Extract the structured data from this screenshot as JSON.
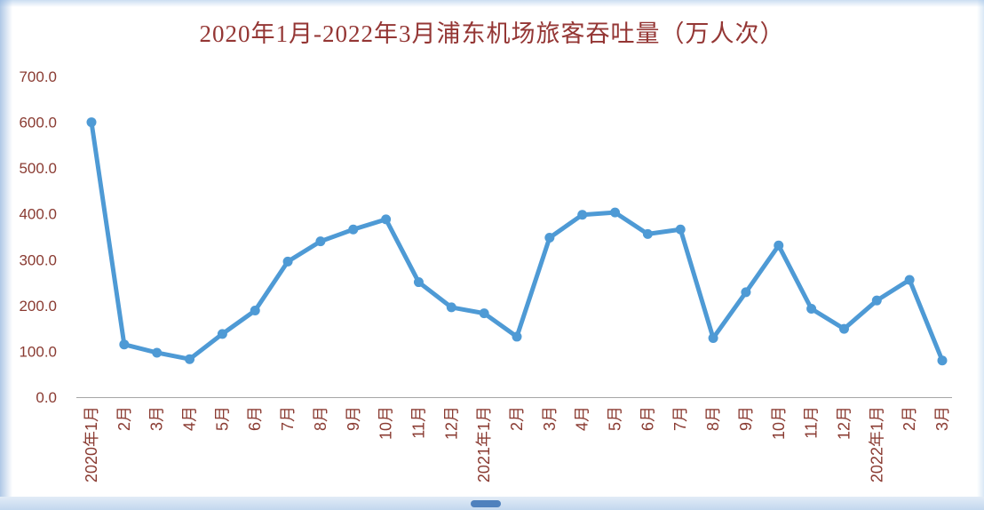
{
  "chart_data": {
    "type": "line",
    "title": "2020年1月-2022年3月浦东机场旅客吞吐量（万人次）",
    "xlabel": "",
    "ylabel": "",
    "grid": false,
    "legend": "none",
    "ylim": [
      0,
      700
    ],
    "ytick_step": 100,
    "ytick_decimals": 1,
    "categories": [
      "2020年1月",
      "2月",
      "3月",
      "4月",
      "5月",
      "6月",
      "7月",
      "8月",
      "9月",
      "10月",
      "11月",
      "12月",
      "2021年1月",
      "2月",
      "3月",
      "4月",
      "5月",
      "6月",
      "7月",
      "8月",
      "9月",
      "10月",
      "11月",
      "12月",
      "2022年1月",
      "2月",
      "3月"
    ],
    "values": [
      600,
      115,
      97,
      83,
      138,
      189,
      296,
      340,
      366,
      388,
      251,
      196,
      183,
      132,
      348,
      398,
      403,
      356,
      366,
      129,
      229,
      331,
      193,
      149,
      211,
      256,
      80
    ],
    "colors": {
      "line": "#4E9AD5",
      "marker": "#4E9AD5",
      "title": "#943634",
      "tick_label": "#8A3B32",
      "axis_line": "#A6A6A6"
    }
  }
}
